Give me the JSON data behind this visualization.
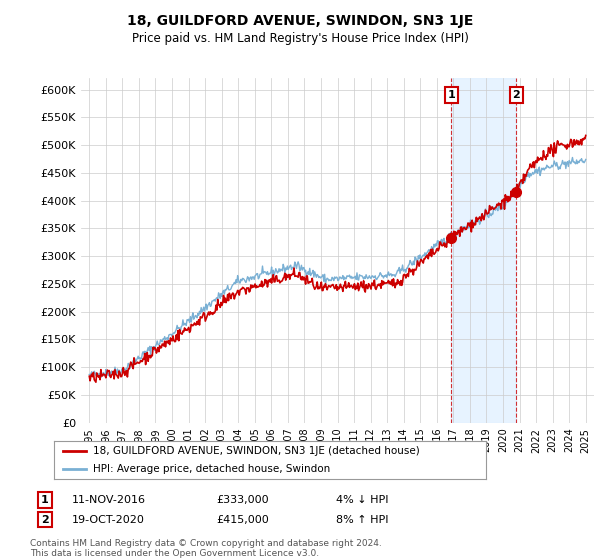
{
  "title": "18, GUILDFORD AVENUE, SWINDON, SN3 1JE",
  "subtitle": "Price paid vs. HM Land Registry's House Price Index (HPI)",
  "ylim": [
    0,
    620000
  ],
  "yticks": [
    0,
    50000,
    100000,
    150000,
    200000,
    250000,
    300000,
    350000,
    400000,
    450000,
    500000,
    550000,
    600000
  ],
  "yticklabels": [
    "£0",
    "£50K",
    "£100K",
    "£150K",
    "£200K",
    "£250K",
    "£300K",
    "£350K",
    "£400K",
    "£450K",
    "£500K",
    "£550K",
    "£600K"
  ],
  "xlim": [
    1994.5,
    2025.5
  ],
  "xticks_start": 1995,
  "xticks_end": 2025,
  "legend_label_red": "18, GUILDFORD AVENUE, SWINDON, SN3 1JE (detached house)",
  "legend_label_blue": "HPI: Average price, detached house, Swindon",
  "annotation1_num": "1",
  "annotation1_date": "11-NOV-2016",
  "annotation1_price": "£333,000",
  "annotation1_hpi": "4% ↓ HPI",
  "annotation2_num": "2",
  "annotation2_date": "19-OCT-2020",
  "annotation2_price": "£415,000",
  "annotation2_hpi": "8% ↑ HPI",
  "footnote_line1": "Contains HM Land Registry data © Crown copyright and database right 2024.",
  "footnote_line2": "This data is licensed under the Open Government Licence v3.0.",
  "red_color": "#cc0000",
  "blue_color": "#7ab0d4",
  "shade_color": "#ddeeff",
  "annotation_box_color": "#cc0000",
  "sale1_x": 2016.87,
  "sale1_y": 333000,
  "sale2_x": 2020.8,
  "sale2_y": 415000,
  "background_color": "#ffffff",
  "grid_color": "#cccccc",
  "noise_seed": 42,
  "noise_scale_hpi": 4000,
  "noise_scale_red": 5000
}
